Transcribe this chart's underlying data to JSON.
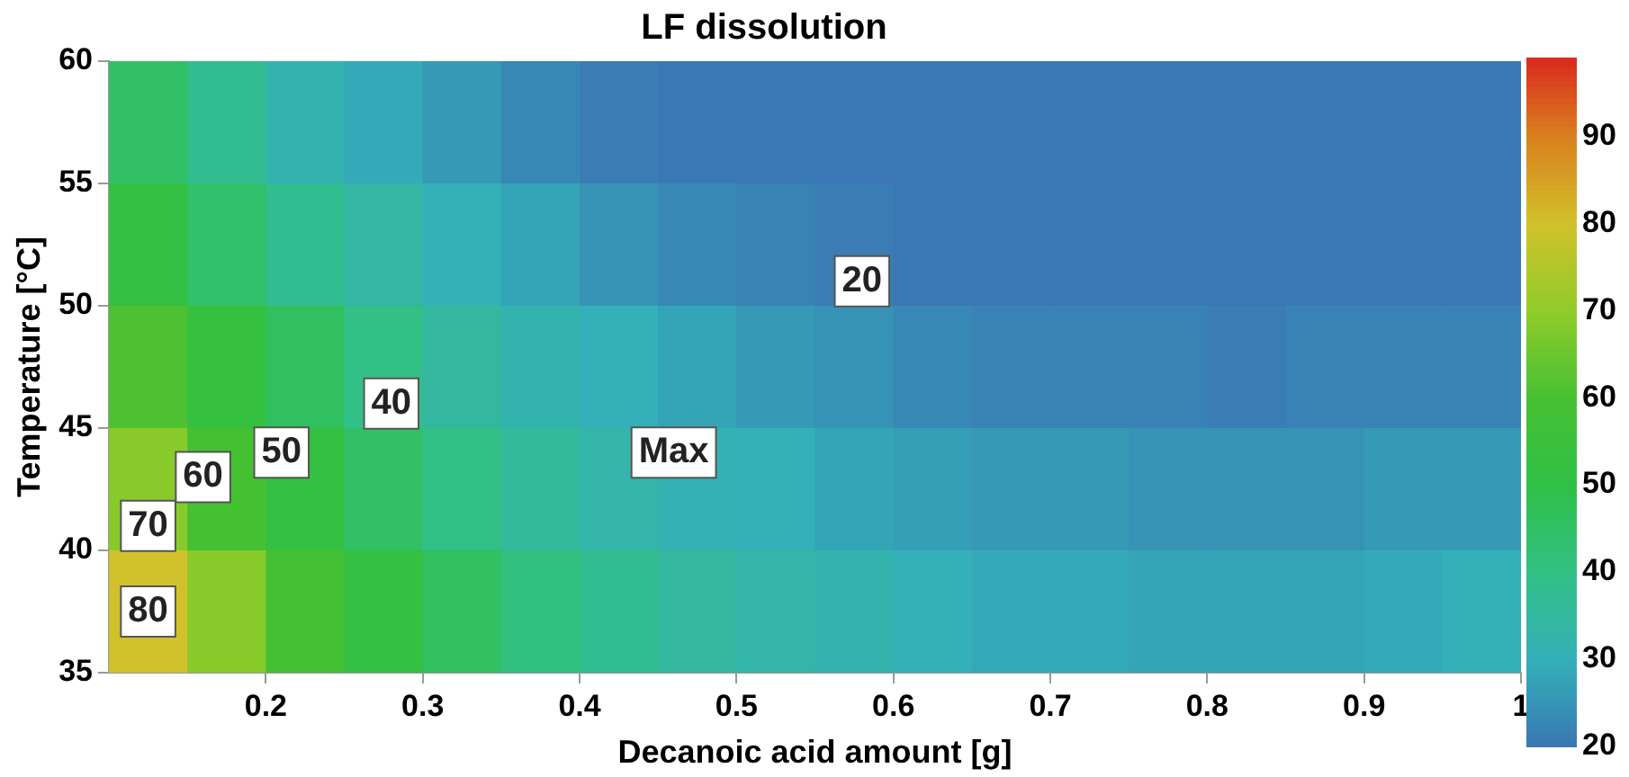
{
  "chart_data": {
    "type": "heatmap",
    "title": "LF dissolution",
    "xlabel": "Decanoic acid amount [g]",
    "ylabel": "Temperature [°C]",
    "x": [
      0.125,
      0.175,
      0.225,
      0.275,
      0.325,
      0.375,
      0.425,
      0.475,
      0.525,
      0.575,
      0.625,
      0.675,
      0.725,
      0.775,
      0.825,
      0.875,
      0.925,
      0.975
    ],
    "y": [
      57.5,
      52.5,
      47.5,
      42.5,
      37.5
    ],
    "cells": [
      [
        45,
        38,
        32,
        29,
        26,
        23,
        21,
        20,
        20,
        20,
        20,
        20,
        20,
        20,
        20,
        20,
        20,
        20
      ],
      [
        52,
        44,
        38,
        34,
        30,
        28,
        25,
        23,
        22,
        21,
        20,
        20,
        20,
        20,
        20,
        20,
        20,
        20
      ],
      [
        61,
        53,
        46,
        40,
        35,
        32,
        30,
        28,
        26,
        25,
        23,
        22,
        22,
        22,
        21,
        22,
        22,
        22
      ],
      [
        69,
        60,
        52,
        45,
        40,
        36,
        33,
        31,
        30,
        28,
        27,
        26,
        26,
        25,
        25,
        25,
        26,
        26
      ],
      [
        80,
        69,
        59,
        52,
        46,
        41,
        38,
        35,
        33,
        32,
        30,
        29,
        29,
        28,
        28,
        28,
        29,
        30
      ]
    ],
    "xlim": [
      0.1,
      1
    ],
    "xticks": [
      0.2,
      0.3,
      0.4,
      0.5,
      0.6,
      0.7,
      0.8,
      0.9,
      1
    ],
    "ylim": [
      35,
      60
    ],
    "yticks": [
      35,
      40,
      45,
      50,
      55,
      60
    ],
    "clim": [
      20,
      99
    ],
    "cticks": [
      20,
      30,
      40,
      50,
      60,
      70,
      80,
      90
    ],
    "annotations": [
      "20",
      "40",
      "50",
      "60",
      "70",
      "80",
      "Max"
    ],
    "grid": false
  }
}
